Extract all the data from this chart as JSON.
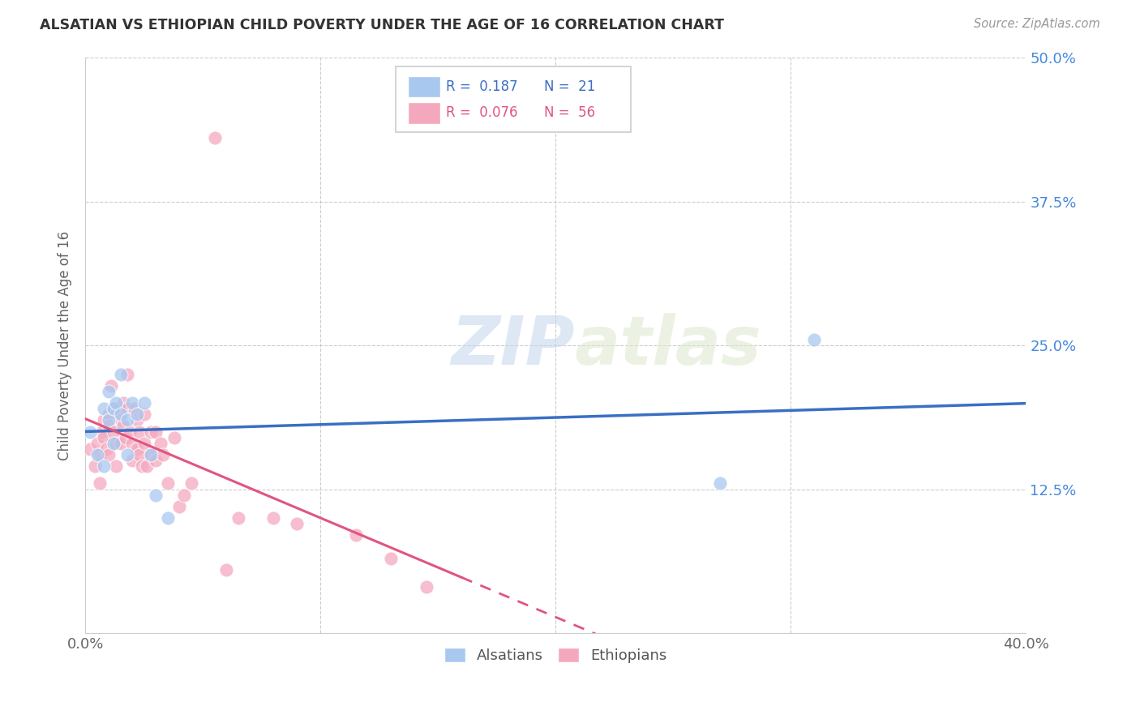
{
  "title": "ALSATIAN VS ETHIOPIAN CHILD POVERTY UNDER THE AGE OF 16 CORRELATION CHART",
  "source": "Source: ZipAtlas.com",
  "ylabel": "Child Poverty Under the Age of 16",
  "xlim": [
    0.0,
    0.4
  ],
  "ylim": [
    0.0,
    0.5
  ],
  "legend_blue_R": "0.187",
  "legend_blue_N": "21",
  "legend_pink_R": "0.076",
  "legend_pink_N": "56",
  "blue_color": "#a8c8f0",
  "pink_color": "#f4a8be",
  "trendline_blue": "#3a6fc4",
  "trendline_pink": "#e05580",
  "watermark_zip": "ZIP",
  "watermark_atlas": "atlas",
  "alsatian_x": [
    0.002,
    0.005,
    0.008,
    0.008,
    0.01,
    0.01,
    0.012,
    0.012,
    0.013,
    0.015,
    0.015,
    0.018,
    0.018,
    0.02,
    0.022,
    0.025,
    0.028,
    0.03,
    0.035,
    0.27,
    0.31
  ],
  "alsatian_y": [
    0.175,
    0.155,
    0.195,
    0.145,
    0.21,
    0.185,
    0.195,
    0.165,
    0.2,
    0.225,
    0.19,
    0.185,
    0.155,
    0.2,
    0.19,
    0.2,
    0.155,
    0.12,
    0.1,
    0.13,
    0.255
  ],
  "ethiopian_x": [
    0.002,
    0.004,
    0.005,
    0.006,
    0.006,
    0.007,
    0.008,
    0.008,
    0.009,
    0.01,
    0.01,
    0.01,
    0.011,
    0.012,
    0.012,
    0.013,
    0.013,
    0.014,
    0.015,
    0.015,
    0.016,
    0.016,
    0.017,
    0.018,
    0.018,
    0.019,
    0.02,
    0.02,
    0.021,
    0.022,
    0.022,
    0.023,
    0.023,
    0.024,
    0.025,
    0.025,
    0.026,
    0.028,
    0.028,
    0.03,
    0.03,
    0.032,
    0.033,
    0.035,
    0.038,
    0.04,
    0.042,
    0.045,
    0.055,
    0.06,
    0.065,
    0.08,
    0.09,
    0.115,
    0.13,
    0.145
  ],
  "ethiopian_y": [
    0.16,
    0.145,
    0.165,
    0.155,
    0.13,
    0.175,
    0.17,
    0.185,
    0.16,
    0.19,
    0.18,
    0.155,
    0.215,
    0.195,
    0.175,
    0.165,
    0.145,
    0.195,
    0.185,
    0.165,
    0.2,
    0.18,
    0.17,
    0.225,
    0.195,
    0.175,
    0.165,
    0.15,
    0.195,
    0.185,
    0.16,
    0.175,
    0.155,
    0.145,
    0.19,
    0.165,
    0.145,
    0.175,
    0.155,
    0.175,
    0.15,
    0.165,
    0.155,
    0.13,
    0.17,
    0.11,
    0.12,
    0.13,
    0.43,
    0.055,
    0.1,
    0.1,
    0.095,
    0.085,
    0.065,
    0.04
  ]
}
